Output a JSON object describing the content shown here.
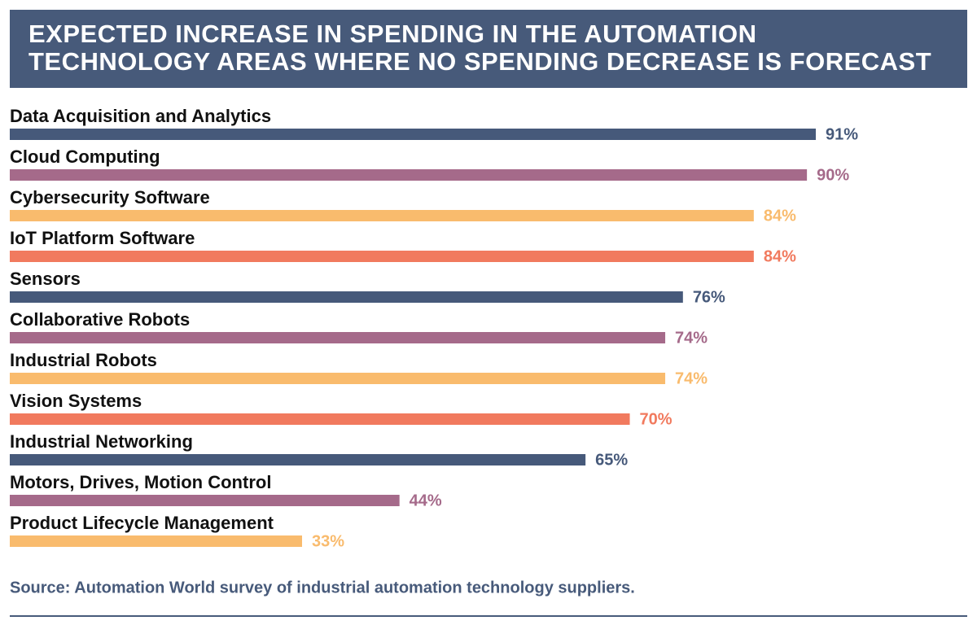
{
  "chart_data": {
    "type": "bar",
    "orientation": "horizontal",
    "title": [
      "EXPECTED INCREASE IN SPENDING IN THE AUTOMATION",
      "TECHNOLOGY AREAS WHERE NO SPENDING DECREASE IS FORECAST"
    ],
    "categories": [
      "Data Acquisition and Analytics",
      "Cloud Computing",
      "Cybersecurity Software",
      "IoT Platform Software",
      "Sensors",
      "Collaborative Robots",
      "Industrial Robots",
      "Vision Systems",
      "Industrial Networking",
      "Motors, Drives, Motion Control",
      "Product Lifecycle Management"
    ],
    "values": [
      91,
      90,
      84,
      84,
      76,
      74,
      74,
      70,
      65,
      44,
      33
    ],
    "value_labels": [
      "91%",
      "90%",
      "84%",
      "84%",
      "76%",
      "74%",
      "74%",
      "70%",
      "65%",
      "44%",
      "33%"
    ],
    "colors": [
      "#46597a",
      "#a56a8a",
      "#f9bb6d",
      "#f17a5e",
      "#46597a",
      "#a56a8a",
      "#f9bb6d",
      "#f17a5e",
      "#46597a",
      "#a56a8a",
      "#f9bb6d"
    ],
    "source": "Source: Automation World survey of industrial automation technology suppliers."
  }
}
